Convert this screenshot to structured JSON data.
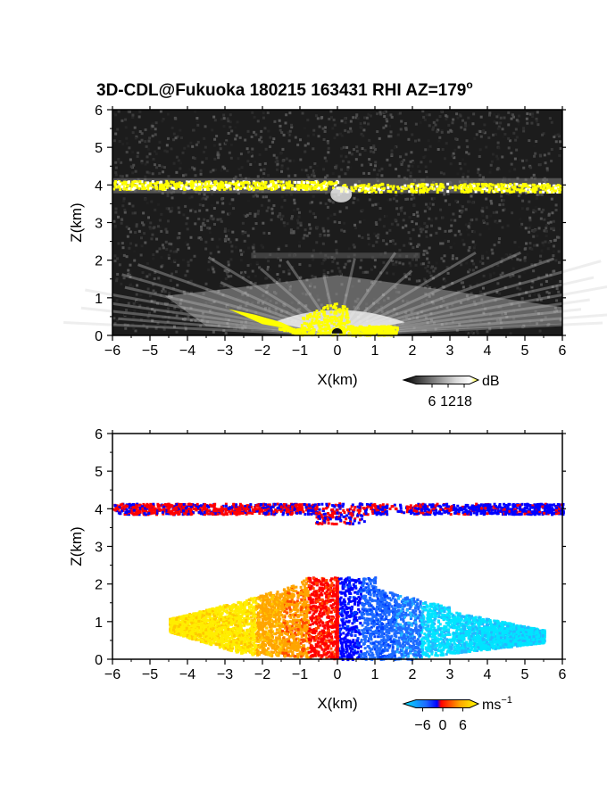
{
  "title": "3D-CDL@Fukuoka 180215 163431 RHI AZ=179",
  "title_degree": "o",
  "colors": {
    "snr_background": "#1c1c1c",
    "snr_highlight": "#ffff00",
    "vel_negative": "#0000ff",
    "vel_positive": "#ff0000",
    "vel_cyan": "#00e5ff",
    "vel_orange": "#ffa500",
    "vel_yellow": "#ffee00"
  },
  "chart_data": [
    {
      "type": "heatmap",
      "panel": "snr",
      "xlabel": "X(km)",
      "ylabel": "Z(km)",
      "xlim": [
        -6,
        6
      ],
      "ylim": [
        0,
        6
      ],
      "xticks": [
        -6,
        -5,
        -4,
        -3,
        -2,
        -1,
        0,
        1,
        2,
        3,
        4,
        5,
        6
      ],
      "yticks": [
        0,
        1,
        2,
        3,
        4,
        5,
        6
      ],
      "colorbar": {
        "unit": "dB",
        "ticks": [
          6,
          12,
          18
        ],
        "range": [
          0,
          20
        ]
      },
      "features": [
        {
          "name": "cloud-layer",
          "x_range": [
            -6,
            6
          ],
          "z_center": 4.0,
          "z_thickness": 0.2,
          "value_db": 18
        },
        {
          "name": "boundary-layer-fan",
          "x_range": [
            -5,
            6
          ],
          "z_max": 1.0,
          "value_db": 12
        },
        {
          "name": "near-ground-echo",
          "x_range": [
            -3,
            1.5
          ],
          "z_max": 0.6,
          "value_db": 18
        }
      ]
    },
    {
      "type": "heatmap",
      "panel": "velocity",
      "xlabel": "X(km)",
      "ylabel": "Z(km)",
      "xlim": [
        -6,
        6
      ],
      "ylim": [
        0,
        6
      ],
      "xticks": [
        -6,
        -5,
        -4,
        -3,
        -2,
        -1,
        0,
        1,
        2,
        3,
        4,
        5,
        6
      ],
      "yticks": [
        0,
        1,
        2,
        3,
        4,
        5,
        6
      ],
      "colorbar": {
        "unit": "ms",
        "unit_exponent": "−1",
        "ticks": [
          "−6",
          "0",
          "6"
        ],
        "range": [
          -8,
          8
        ]
      },
      "features": [
        {
          "name": "cloud-layer-mixed",
          "x_range": [
            -6,
            6
          ],
          "z_center": 4.0,
          "z_thickness": 0.3
        },
        {
          "name": "negative-x-positive-velocity",
          "x_range": [
            -4.5,
            0
          ],
          "z_max": 2.2,
          "velocity_ms": 4
        },
        {
          "name": "positive-x-negative-velocity",
          "x_range": [
            0,
            5.5
          ],
          "z_max": 2.2,
          "velocity_ms": -4
        }
      ]
    }
  ]
}
